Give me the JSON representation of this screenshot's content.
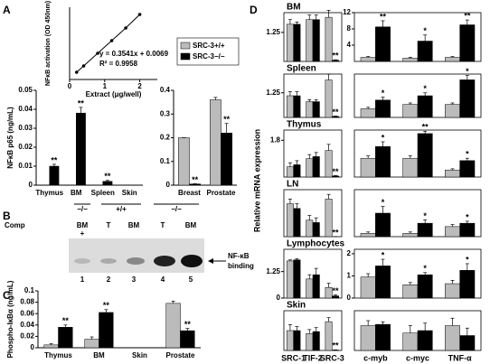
{
  "panel_labels": [
    "A",
    "B",
    "C",
    "D"
  ],
  "d_ylabel": "Relative mRNA expression",
  "blot": {
    "genotypes": [
      "−/−",
      "+/+",
      "−/−"
    ],
    "comp_label": "Comp",
    "comp_mark": "+",
    "lanes": [
      "BM",
      "T",
      "BM",
      "T",
      "BM"
    ],
    "lane_numbers": [
      1,
      2,
      3,
      4,
      5
    ],
    "band_label": [
      "NF-κB",
      "binding"
    ]
  },
  "chart_data": [
    {
      "type": "scatter",
      "x": [
        0.2,
        0.4,
        0.8,
        1.2,
        1.6,
        2
      ],
      "values": [
        0.08,
        0.15,
        0.29,
        0.43,
        0.57,
        0.72
      ],
      "xlim": [
        0,
        2.5
      ],
      "xticks": [
        0,
        1,
        2
      ],
      "ylim": [
        0,
        0.8
      ],
      "color": "#000000",
      "ylabel": "NFκB activation (OD 450nm)",
      "xlabel": "Extract (μg/well)",
      "annotations": [
        "y = 0.3541x + 0.0069",
        "R² = 0.9958"
      ]
    },
    {
      "type": "bar",
      "categories": [
        "Thymus",
        "BM",
        "Spleen",
        "Skin"
      ],
      "ylabel": "NFκB p65 (ng/mL)",
      "ylim": [
        0,
        0.05
      ],
      "yticks": [
        0,
        0.01,
        0.02,
        0.03,
        0.04,
        0.05
      ],
      "series": [
        {
          "name": "SRC-3+/+",
          "color": "#bbbbbb",
          "values": [
            0,
            0,
            0,
            0
          ],
          "errors": [
            0,
            0,
            0,
            0
          ]
        },
        {
          "name": "SRC-3−/−",
          "color": "#000000",
          "values": [
            0.01,
            0.038,
            0.002,
            0
          ],
          "errors": [
            0.001,
            0.003,
            0.0005,
            0
          ],
          "stars": [
            "**",
            "**",
            "**",
            null
          ]
        }
      ]
    },
    {
      "type": "bar",
      "categories": [
        "Breast",
        "Prostate"
      ],
      "ylim": [
        0,
        0.4
      ],
      "yticks": [
        0,
        0.1,
        0.2,
        0.3,
        0.4
      ],
      "series": [
        {
          "color": "#bbbbbb",
          "values": [
            0.2,
            0.36
          ],
          "errors": [
            0,
            0.01
          ]
        },
        {
          "color": "#000000",
          "values": [
            0.005,
            0.22
          ],
          "errors": [
            0.001,
            0.04
          ],
          "stars": [
            "**",
            "**"
          ]
        }
      ]
    },
    {
      "type": "bar",
      "categories": [
        "Thymus",
        "BM",
        "Skin",
        "Prostate"
      ],
      "ylabel": "Phospho-IκBα (ng/mL)",
      "ylim": [
        0,
        0.1
      ],
      "yticks": [
        0,
        0.02,
        0.04,
        0.06,
        0.08,
        0.1
      ],
      "series": [
        {
          "color": "#bbbbbb",
          "values": [
            0.005,
            0.015,
            0,
            0.078
          ],
          "errors": [
            0.002,
            0.004,
            0,
            0.004
          ]
        },
        {
          "color": "#000000",
          "values": [
            0.036,
            0.062,
            0,
            0.03
          ],
          "errors": [
            0.004,
            0.005,
            0,
            0.004
          ],
          "stars": [
            "**",
            "**",
            null,
            "**"
          ]
        }
      ]
    },
    {
      "type": "bar",
      "title": "BM",
      "categories": [
        null,
        null,
        null
      ],
      "ylim": [
        0,
        2.1
      ],
      "yticks": [
        1.25
      ],
      "series": [
        {
          "color": "#bbbbbb",
          "values": [
            1.6,
            1.8,
            1.9
          ],
          "errors": [
            0.2,
            0.2,
            0.3
          ]
        },
        {
          "color": "#000000",
          "values": [
            1.6,
            1.8,
            0.05
          ],
          "errors": [
            0.1,
            0.2,
            0.02
          ],
          "stars": [
            null,
            null,
            "**"
          ]
        }
      ]
    },
    {
      "type": "bar",
      "categories": [
        null,
        null,
        null
      ],
      "ylim": [
        0,
        12
      ],
      "yticks": [
        4,
        8,
        12
      ],
      "series": [
        {
          "color": "#bbbbbb",
          "values": [
            1,
            0.8,
            1
          ],
          "errors": [
            0.2,
            0.2,
            0.2
          ]
        },
        {
          "color": "#000000",
          "values": [
            8.5,
            5,
            9
          ],
          "errors": [
            1.5,
            1.5,
            1.2
          ],
          "stars": [
            "**",
            "*",
            "**"
          ]
        }
      ]
    },
    {
      "type": "bar",
      "title": "Spleen",
      "categories": [
        null,
        null,
        null
      ],
      "ylim": [
        0,
        2.2
      ],
      "yticks": [
        1.25
      ],
      "series": [
        {
          "color": "#bbbbbb",
          "values": [
            1.1,
            0.8,
            1.9
          ],
          "errors": [
            0.2,
            0.1,
            0.3
          ]
        },
        {
          "color": "#000000",
          "values": [
            1.1,
            0.8,
            0.05
          ],
          "errors": [
            0.2,
            0.1,
            0.02
          ],
          "stars": [
            null,
            null,
            "**"
          ]
        }
      ]
    },
    {
      "type": "bar",
      "categories": [
        null,
        null,
        null
      ],
      "ylim": [
        0,
        3
      ],
      "yticks": [],
      "series": [
        {
          "color": "#bbbbbb",
          "values": [
            0.6,
            0.9,
            0.9
          ],
          "errors": [
            0.1,
            0.1,
            0.1
          ]
        },
        {
          "color": "#000000",
          "values": [
            1.2,
            1.5,
            2.6
          ],
          "errors": [
            0.2,
            0.2,
            0.3
          ],
          "stars": [
            "*",
            "*",
            "*"
          ]
        }
      ]
    },
    {
      "type": "bar",
      "title": "Thymus",
      "categories": [
        null,
        null,
        null
      ],
      "ylim": [
        0,
        2.3
      ],
      "yticks": [
        1.8
      ],
      "series": [
        {
          "color": "#bbbbbb",
          "values": [
            0.5,
            0.9,
            1.3
          ],
          "errors": [
            0.2,
            0.2,
            0.3
          ]
        },
        {
          "color": "#000000",
          "values": [
            0.6,
            1.0,
            0.05
          ],
          "errors": [
            0.2,
            0.2,
            0.02
          ],
          "stars": [
            null,
            null,
            "**"
          ]
        }
      ]
    },
    {
      "type": "bar",
      "categories": [
        null,
        null,
        null
      ],
      "ylim": [
        0,
        2
      ],
      "yticks": [],
      "series": [
        {
          "color": "#bbbbbb",
          "values": [
            0.8,
            0.8,
            0.3
          ],
          "errors": [
            0.1,
            0.1,
            0.05
          ]
        },
        {
          "color": "#000000",
          "values": [
            1.3,
            1.85,
            0.7
          ],
          "errors": [
            0.2,
            0.1,
            0.1
          ],
          "stars": [
            "*",
            "**",
            "*"
          ]
        }
      ]
    },
    {
      "type": "bar",
      "title": "LN",
      "categories": [
        null,
        null,
        null
      ],
      "ylim": [
        0,
        1
      ],
      "yticks": [],
      "series": [
        {
          "color": "#bbbbbb",
          "values": [
            0.7,
            0.35,
            0.8
          ],
          "errors": [
            0.1,
            0.1,
            0.1
          ]
        },
        {
          "color": "#000000",
          "values": [
            0.6,
            0.3,
            0
          ],
          "errors": [
            0.1,
            0.1,
            0
          ],
          "stars": [
            null,
            null,
            "**"
          ]
        }
      ]
    },
    {
      "type": "bar",
      "categories": [
        null,
        null,
        null
      ],
      "ylim": [
        0,
        0.7
      ],
      "yticks": [],
      "series": [
        {
          "color": "#bbbbbb",
          "values": [
            0.05,
            0.05,
            0.15
          ],
          "errors": [
            0.02,
            0.02,
            0.03
          ]
        },
        {
          "color": "#000000",
          "values": [
            0.35,
            0.2,
            0.2
          ],
          "errors": [
            0.1,
            0.05,
            0.03
          ],
          "stars": [
            "*",
            "*",
            "*"
          ]
        }
      ]
    },
    {
      "type": "bar",
      "title": "Lymphocytes",
      "categories": [
        null,
        null,
        null
      ],
      "ylim": [
        0,
        2.3
      ],
      "yticks": [
        0,
        1.25
      ],
      "series": [
        {
          "color": "#bbbbbb",
          "values": [
            1.75,
            0.9,
            0.5
          ],
          "errors": [
            0.05,
            0.2,
            0.2
          ]
        },
        {
          "color": "#000000",
          "values": [
            1.8,
            1.1,
            0.1
          ],
          "errors": [
            0.05,
            0.3,
            0.05
          ],
          "stars": [
            null,
            null,
            "**"
          ]
        }
      ]
    },
    {
      "type": "bar",
      "categories": [
        null,
        null,
        null
      ],
      "ylim": [
        0,
        2.2
      ],
      "yticks": [
        0,
        1,
        2
      ],
      "series": [
        {
          "color": "#bbbbbb",
          "values": [
            0.95,
            0.6,
            0.65
          ],
          "errors": [
            0.15,
            0.1,
            0.15
          ]
        },
        {
          "color": "#000000",
          "values": [
            1.45,
            1.05,
            1.25
          ],
          "errors": [
            0.3,
            0.1,
            0.3
          ],
          "stars": [
            "*",
            "*",
            "*"
          ]
        }
      ]
    },
    {
      "type": "bar",
      "title": "Skin",
      "categories": [
        "SRC-1",
        "TIF-2",
        "SRC-3"
      ],
      "ylim": [
        0,
        2
      ],
      "yticks": [],
      "series": [
        {
          "color": "#bbbbbb",
          "values": [
            1.0,
            0.85,
            1.45
          ],
          "errors": [
            0.3,
            0.2,
            0.2
          ]
        },
        {
          "color": "#000000",
          "values": [
            1.0,
            0.95,
            0.02
          ],
          "errors": [
            0.2,
            0.2,
            0.01
          ],
          "stars": [
            null,
            null,
            "**"
          ]
        }
      ]
    },
    {
      "type": "bar",
      "categories": [
        "c-myb",
        "c-myc",
        "TNF-α"
      ],
      "ylim": [
        0,
        1.6
      ],
      "yticks": [],
      "series": [
        {
          "color": "#bbbbbb",
          "values": [
            1.0,
            0.7,
            1.0
          ],
          "errors": [
            0.2,
            0.3,
            0.3
          ]
        },
        {
          "color": "#000000",
          "values": [
            1.05,
            0.8,
            0.6
          ],
          "errors": [
            0.1,
            0.3,
            0.3
          ]
        }
      ]
    }
  ]
}
